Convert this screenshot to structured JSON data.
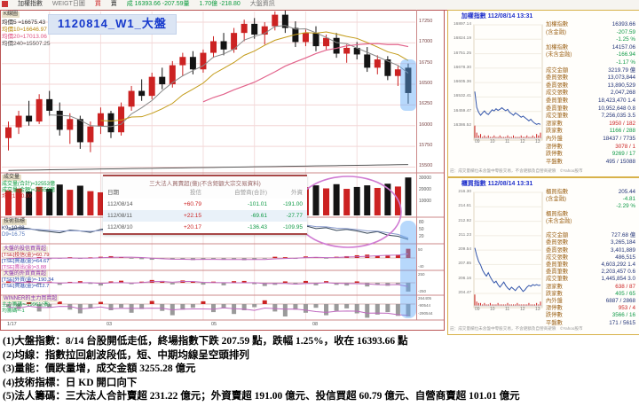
{
  "toolbar": {
    "symbol": "加權指數",
    "mode": "WEIGT日圖",
    "buy": "買",
    "sell": "賣",
    "last": "成 16393.66 -207.59量",
    "change": "1.70億 -218.80",
    "right": "大盤資訊"
  },
  "main_chart": {
    "name": "K線圖",
    "title": "1120814_W1_大盤",
    "ma_labels": [
      "均價5 ≈16675.43",
      "均價10≈16646.97",
      "均價20≈17013.06",
      "均價240≈15507.25"
    ],
    "x_ticks": [
      {
        "x": 8,
        "t": "1/17"
      },
      {
        "x": 120,
        "t": "03"
      },
      {
        "x": 238,
        "t": "05"
      },
      {
        "x": 352,
        "t": "08"
      }
    ]
  },
  "volume_panel": {
    "name": "成交量",
    "lines": [
      {
        "text": "成交量(合計)≈32553億",
        "color": "#0a9a3c"
      },
      {
        "text": "成交量(金額)≈32553億",
        "color": "#0a9a3c"
      },
      {
        "text": "均量13≈0.00",
        "color": "#cc2222"
      }
    ]
  },
  "kd_panel": {
    "name": "技術指標",
    "lines": [
      {
        "text": "K9≈10.88",
        "color": "#223366"
      },
      {
        "text": "D9≈16.75",
        "color": "#5577bb"
      }
    ]
  },
  "sub_panels": [
    {
      "title": "大盤的投信買賣超",
      "lines": [
        {
          "text": "[TSE]投信(金)≈60.79",
          "color": "#bb2222"
        },
        {
          "text": "[TSE]買進(金)≈64.67",
          "color": "#2244aa"
        },
        {
          "text": "[TSE]賣出(金)≈3.88",
          "color": "#cc44aa"
        }
      ]
    },
    {
      "title": "大盤的外資買賣超",
      "lines": [
        {
          "text": "[TSE]外資(金)≈-190.34",
          "color": "#2244aa"
        },
        {
          "text": "[TSE]買進(金)≈612.7",
          "color": "#2244aa"
        }
      ]
    },
    {
      "title": "WINNER的主力買賣超",
      "lines": [
        {
          "text": "主力籌碼≈-19961(張)",
          "color": "#0f9a46"
        },
        {
          "text": "均籌碼≈-1",
          "color": "#0f9a46"
        }
      ]
    }
  ],
  "institution_table": {
    "title": "三大法人買賣超(億)(不含鉅額大宗交易資料)",
    "headers": [
      "日期",
      "投信",
      "自營商(合計)",
      "外資"
    ],
    "rows": [
      [
        "112/08/14",
        "+60.79",
        "-101.01",
        "-191.00"
      ],
      [
        "112/08/11",
        "+22.15",
        "-69.61",
        "-27.77"
      ],
      [
        "112/08/10",
        "+20.17",
        "-136.43",
        "-109.95"
      ]
    ]
  },
  "sidebar": {
    "panels": [
      {
        "title": "加權指數 112/08/14 13:31",
        "y_labels": [
          "16897.14",
          "16824.19",
          "16751.25",
          "16678.30",
          "16605.36",
          "16532.41",
          "16459.47",
          "16386.52"
        ],
        "x_labels": [
          "09",
          "10",
          "11",
          "12",
          "13"
        ],
        "rows": [
          {
            "label": "加權指數",
            "value": "16393.66",
            "color": "navy"
          },
          {
            "label": "(含金融)",
            "value": "-207.59",
            "color": "green"
          },
          {
            "label": "",
            "value": "-1.25 %",
            "color": "green"
          },
          {
            "label": "加權指數",
            "value": "14157.06",
            "color": "navy"
          },
          {
            "label": "(未含金融)",
            "value": "-166.94",
            "color": "green"
          },
          {
            "label": "",
            "value": "-1.17 %",
            "color": "green"
          },
          {
            "label": "成交金額",
            "value": "3219.79 億",
            "color": "navy"
          },
          {
            "label": "委買張數",
            "value": "13,073,844",
            "color": "navy"
          },
          {
            "label": "委賣張數",
            "value": "13,890,529",
            "color": "navy"
          },
          {
            "label": "成交張數",
            "value": "2,047,268",
            "color": "navy"
          },
          {
            "label": "委買筆數",
            "value": "18,423,470 1.4",
            "color": "navy"
          },
          {
            "label": "委賣筆數",
            "value": "10,952,648 0.8",
            "color": "navy"
          },
          {
            "label": "成交筆數",
            "value": "7,256,035 3.5",
            "color": "navy"
          },
          {
            "label": "漲家數",
            "value": "1950 / 182",
            "color": "red"
          },
          {
            "label": "跌家數",
            "value": "1166 / 288",
            "color": "green"
          },
          {
            "label": "內外盤",
            "value": "18437 / 7735",
            "color": "navy"
          },
          {
            "label": "漲停數",
            "value": "3078 / 1",
            "color": "red"
          },
          {
            "label": "跌停數",
            "value": "9269 / 17",
            "color": "green"
          },
          {
            "label": "平盤數",
            "value": "495 / 15088",
            "color": "navy"
          }
        ],
        "note": "註：成交量欄位未含盤中零股交易，不含鉅額及自營商避險　©Yahoo股市"
      },
      {
        "title": "櫃買指數 112/08/14 13:31",
        "y_labels": [
          "216.30",
          "214.61",
          "212.92",
          "211.23",
          "209.54",
          "207.85",
          "206.16",
          "204.47"
        ],
        "x_labels": [
          "09",
          "10",
          "11",
          "12",
          "13"
        ],
        "rows": [
          {
            "label": "櫃買指數",
            "value": "205.44",
            "color": "navy"
          },
          {
            "label": "(含金融)",
            "value": "-4.81",
            "color": "green"
          },
          {
            "label": "",
            "value": "-2.29 %",
            "color": "green"
          },
          {
            "label": "櫃買指數",
            "value": "",
            "color": "navy"
          },
          {
            "label": "(未含金融)",
            "value": "",
            "color": "navy"
          },
          {
            "label": "",
            "value": "",
            "color": "navy"
          },
          {
            "label": "成交金額",
            "value": "727.68 億",
            "color": "navy"
          },
          {
            "label": "委買張數",
            "value": "3,265,184",
            "color": "navy"
          },
          {
            "label": "委賣張數",
            "value": "3,401,889",
            "color": "navy"
          },
          {
            "label": "成交張數",
            "value": "486,515",
            "color": "navy"
          },
          {
            "label": "委買筆數",
            "value": "4,603,292 1.4",
            "color": "navy"
          },
          {
            "label": "委賣筆數",
            "value": "2,203,457 0.6",
            "color": "navy"
          },
          {
            "label": "成交筆數",
            "value": "1,445,854 3.0",
            "color": "navy"
          },
          {
            "label": "漲家數",
            "value": "638 / 87",
            "color": "red"
          },
          {
            "label": "跌家數",
            "value": "405 / 65",
            "color": "green"
          },
          {
            "label": "內外盤",
            "value": "6887 / 2868",
            "color": "navy"
          },
          {
            "label": "漲停數",
            "value": "953 / 4",
            "color": "red"
          },
          {
            "label": "跌停數",
            "value": "3566 / 16",
            "color": "green"
          },
          {
            "label": "平盤數",
            "value": "171 / 5615",
            "color": "navy"
          }
        ],
        "note": "註：成交量欄位未含盤中零股交易，不含鉅額及自營商避險　©Yahoo股市"
      }
    ]
  },
  "summary": {
    "lines": [
      "(1)大盤指數：8/14 台股開低走低，終場指數下跌 207.59 點，跌幅 1.25%，收在 16393.66 點",
      "(2)均線：指數拉回創波段低，短、中期均線呈空頭排列",
      "(3)量能：價跌量增，成交金額 3255.28 億元",
      "(4)技術指標：日 KD 開口向下",
      "(5)法人籌碼：三大法人合計賣超 231.22 億元；外資賣超 191.00 億元、投信買超 60.79 億元、自營商賣超 101.01 億元"
    ]
  },
  "chart_data": [
    {
      "id": "weekly_candlestick",
      "type": "candlestick",
      "title": "1120814_W1_大盤",
      "ylim": [
        15430,
        17400
      ],
      "y_ticks": [
        17250,
        17000,
        16750,
        16500,
        16250,
        16000,
        15750,
        15500
      ],
      "up_color": "#cc2222",
      "down_color": "#141414",
      "candles": [
        [
          15850,
          16050,
          15700,
          15980
        ],
        [
          15980,
          16180,
          15900,
          16120
        ],
        [
          16120,
          16300,
          16000,
          16050
        ],
        [
          16050,
          16380,
          16020,
          16320
        ],
        [
          16320,
          16420,
          16120,
          16180
        ],
        [
          16180,
          16280,
          15880,
          15950
        ],
        [
          15950,
          16150,
          15780,
          16080
        ],
        [
          16080,
          16120,
          15720,
          15800
        ],
        [
          15800,
          16050,
          15680,
          15990
        ],
        [
          15990,
          16220,
          15900,
          16150
        ],
        [
          16150,
          16180,
          15850,
          15920
        ],
        [
          15920,
          16280,
          15880,
          16230
        ],
        [
          16230,
          16480,
          16180,
          16420
        ],
        [
          16420,
          16560,
          16300,
          16360
        ],
        [
          16360,
          16640,
          16320,
          16590
        ],
        [
          16590,
          16700,
          16440,
          16500
        ],
        [
          16500,
          16780,
          16460,
          16730
        ],
        [
          16730,
          16880,
          16600,
          16830
        ],
        [
          16830,
          16900,
          16620,
          16680
        ],
        [
          16680,
          16920,
          16640,
          16880
        ],
        [
          16880,
          17080,
          16820,
          17020
        ],
        [
          17020,
          17120,
          16850,
          16920
        ],
        [
          16920,
          17180,
          16880,
          17120
        ],
        [
          17120,
          17280,
          17020,
          17230
        ],
        [
          17230,
          17300,
          17050,
          17100
        ],
        [
          17100,
          17250,
          16980,
          17200
        ],
        [
          17200,
          17380,
          17150,
          17340
        ],
        [
          17340,
          17400,
          17120,
          17180
        ],
        [
          17180,
          17260,
          16950,
          17010
        ],
        [
          17010,
          17160,
          16960,
          17120
        ],
        [
          17120,
          17200,
          16900,
          16960
        ],
        [
          16960,
          17100,
          16920,
          17060
        ],
        [
          17060,
          17120,
          16820,
          16870
        ],
        [
          16870,
          16980,
          16760,
          16940
        ],
        [
          16940,
          17010,
          16800,
          16860
        ],
        [
          16860,
          16950,
          16650,
          16700
        ],
        [
          16700,
          16850,
          16620,
          16800
        ],
        [
          16800,
          16840,
          16550,
          16600
        ],
        [
          16600,
          16720,
          16480,
          16680
        ],
        [
          16700,
          16750,
          16265,
          16394
        ]
      ]
    },
    {
      "id": "weekly_volume",
      "type": "bar",
      "name": "成交量(億)",
      "ylim": [
        0,
        35000
      ],
      "y_ticks": [
        "30000",
        "20000",
        "10000"
      ],
      "values": [
        21500,
        23000,
        20500,
        24500,
        22800,
        26500,
        22000,
        25500,
        20800,
        19800,
        19200,
        21800,
        24800,
        23400,
        22600,
        21200,
        24200,
        26800,
        23800,
        22400,
        27000,
        24600,
        27500,
        29000,
        25200,
        23800,
        27800,
        29500,
        26400,
        24200,
        25800,
        23200,
        26800,
        22800,
        24400,
        25800,
        23600,
        27200,
        24800,
        32553
      ]
    },
    {
      "id": "weekly_kd",
      "type": "line",
      "name": "KD",
      "ylim": [
        0,
        100
      ],
      "y_ticks": [
        "80",
        "50",
        "20"
      ],
      "series": [
        {
          "name": "K9",
          "values": [
            55,
            62,
            58,
            50,
            45,
            40,
            52,
            48,
            42,
            55,
            60,
            57,
            50,
            62,
            70,
            66,
            72,
            78,
            70,
            74,
            80,
            72,
            78,
            84,
            76,
            80,
            86,
            78,
            65,
            70,
            58,
            62,
            50,
            55,
            48,
            38,
            45,
            30,
            25,
            10.88
          ]
        },
        {
          "name": "D9",
          "values": [
            50,
            55,
            56,
            54,
            51,
            47,
            49,
            48,
            46,
            50,
            54,
            55,
            53,
            56,
            61,
            63,
            66,
            71,
            70,
            71,
            75,
            74,
            75,
            79,
            78,
            78,
            81,
            80,
            74,
            73,
            67,
            66,
            60,
            58,
            54,
            48,
            47,
            40,
            33,
            16.75
          ]
        }
      ]
    },
    {
      "id": "invest_trust_net_buy",
      "type": "bar",
      "name": "投信買賣超(億)",
      "ylim": [
        -70,
        70
      ],
      "y_ticks": [
        "50",
        "-40"
      ],
      "values": [
        -5,
        3,
        -4,
        6,
        -8,
        -3,
        5,
        -6,
        4,
        8,
        12,
        6,
        -5,
        -8,
        -12,
        -6,
        -10,
        -8,
        -14,
        -10,
        -6,
        -12,
        -8,
        -15,
        -10,
        -5,
        8,
        5,
        -6,
        10,
        6,
        -4,
        8,
        12,
        18,
        22,
        15,
        20,
        22,
        61
      ]
    },
    {
      "id": "foreign_net_buy",
      "type": "bar",
      "name": "外資買賣超(億)",
      "ylim": [
        -250,
        250
      ],
      "y_ticks": [
        "250",
        "-250"
      ],
      "values": [
        30,
        -20,
        40,
        -35,
        25,
        -45,
        20,
        35,
        -25,
        -60,
        30,
        45,
        -30,
        25,
        60,
        40,
        -35,
        50,
        30,
        -40,
        25,
        -55,
        35,
        40,
        -30,
        -70,
        -45,
        30,
        -35,
        40,
        -55,
        35,
        -45,
        -60,
        30,
        -80,
        -45,
        -65,
        -28,
        -191
      ]
    },
    {
      "id": "major_player_net_buy",
      "type": "bar",
      "name": "主力買賣超(張)",
      "ylim": [
        -260,
        120
      ],
      "y_ticks": [
        "264405",
        "-90544",
        "-290544"
      ],
      "values": [
        -50,
        -80,
        30,
        -120,
        -60,
        40,
        -90,
        -150,
        -70,
        35,
        -100,
        -60,
        -140,
        -80,
        50,
        -110,
        -180,
        -90,
        -60,
        45,
        -130,
        -70,
        -160,
        -100,
        -50,
        60,
        -120,
        -200,
        -90,
        -140,
        -60,
        -180,
        -110,
        -70,
        -150,
        -220,
        -170,
        -130,
        -190,
        -200
      ]
    },
    {
      "id": "taiex_intraday",
      "type": "line",
      "title": "加權指數 112/08/14 13:31",
      "ylim": [
        16386.52,
        16897.14
      ],
      "x_labels": [
        "09",
        "10",
        "11",
        "12",
        "13"
      ],
      "values": [
        16560,
        16480,
        16455,
        16440,
        16452,
        16462,
        16450,
        16444,
        16456,
        16468,
        16462,
        16473,
        16465,
        16470,
        16478,
        16470,
        16463,
        16470,
        16455,
        16448,
        16440,
        16452,
        16446,
        16438,
        16430,
        16436,
        16428,
        16420,
        16412,
        16420,
        16408,
        16400,
        16394,
        16398,
        16394
      ],
      "volume": [
        9,
        4,
        2,
        3,
        1,
        2,
        1,
        2,
        1,
        1,
        2,
        1,
        1,
        2,
        1,
        1,
        1,
        2,
        1,
        1,
        2,
        1,
        1,
        1,
        2,
        1,
        1,
        2,
        1,
        1,
        2,
        1,
        3,
        2,
        4
      ]
    },
    {
      "id": "otc_intraday",
      "type": "line",
      "title": "櫃買指數 112/08/14 13:31",
      "ylim": [
        204.47,
        216.3
      ],
      "x_labels": [
        "09",
        "10",
        "11",
        "12",
        "13"
      ],
      "values": [
        209.8,
        208.9,
        208.2,
        207.8,
        207.2,
        206.8,
        206.5,
        206.9,
        206.4,
        206.0,
        205.7,
        205.9,
        205.5,
        205.2,
        205.5,
        205.8,
        205.4,
        205.1,
        204.9,
        205.2,
        205.0,
        204.8,
        205.1,
        205.3,
        205.0,
        204.7,
        204.9,
        205.2,
        205.4,
        205.3,
        205.5,
        205.4,
        205.5,
        205.4,
        205.44
      ],
      "volume": [
        8,
        3,
        2,
        2,
        1,
        2,
        1,
        1,
        2,
        1,
        1,
        1,
        2,
        1,
        1,
        1,
        1,
        2,
        1,
        1,
        1,
        1,
        2,
        1,
        1,
        1,
        1,
        1,
        2,
        1,
        1,
        1,
        2,
        1,
        3
      ]
    }
  ]
}
